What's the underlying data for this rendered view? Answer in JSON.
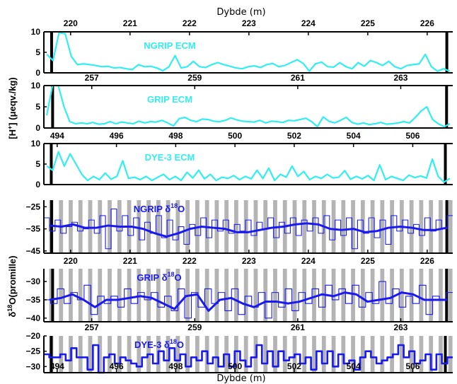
{
  "chart_data": {
    "type": "line",
    "top_xlabel": "Dybde (m)",
    "bottom_xlabel": "Dybde (m)",
    "ecm_ylabel": {
      "main": "[H",
      "sup": "+",
      "rest": "] (μeqv./kg)"
    },
    "iso_ylabel": {
      "main": "δ",
      "sup": "18",
      "rest": "O(promille)"
    },
    "colors": {
      "ecm": "#33eeee",
      "iso": "#1a1aee",
      "band": "#b4b4b4",
      "marker": "#000000"
    },
    "depth_axes": {
      "NGRIP": {
        "xlim": [
          219.55,
          226.43
        ],
        "ticks": [
          "220",
          "221",
          "222",
          "223",
          "224",
          "225",
          "226"
        ],
        "markers": [
          219.68,
          226.33
        ],
        "annual_layers": 42
      },
      "GRIP": {
        "xlim": [
          256.07,
          264.01
        ],
        "ticks": [
          "257",
          "259",
          "261",
          "263"
        ],
        "markers": [
          256.24,
          263.89
        ],
        "annual_layers": 42
      },
      "DYE3": {
        "xlim": [
          493.55,
          507.35
        ],
        "ticks": [
          "494",
          "496",
          "498",
          "500",
          "502",
          "504",
          "506"
        ],
        "markers": [
          493.8,
          507.1
        ],
        "annual_layers": 42
      }
    },
    "panels": [
      {
        "title": "NGRIP ECM",
        "axis": "NGRIP",
        "ylim": [
          0,
          10
        ],
        "yticks": [
          "0",
          "5",
          "10"
        ],
        "kind": "ecm",
        "series": [
          {
            "name": "NGRIP ECM",
            "values": [
              4.5,
              3,
              9.8,
              9.5,
              4,
              2,
              2.2,
              2,
              1.8,
              1.5,
              1.6,
              1.2,
              1.3,
              1,
              0.8,
              2,
              1.5,
              1.6,
              1.2,
              0.5,
              1.5,
              4.2,
              1.2,
              1.5,
              2.8,
              1.5,
              1.3,
              2,
              2.5,
              2,
              1.6,
              1.2,
              1,
              1.5,
              1.7,
              1.3,
              2,
              2.3,
              1.5,
              1.8,
              2.5,
              3.2,
              2.3,
              0.4,
              2.2,
              2.6,
              1.5,
              1.4,
              2.5,
              1.5,
              1,
              2.5,
              1.6,
              3,
              2.5,
              1.8,
              2.8,
              1.5,
              1,
              1.8,
              2,
              2.2,
              4.5,
              1.5,
              0.4,
              1,
              0.4
            ]
          }
        ]
      },
      {
        "title": "GRIP ECM",
        "axis": "GRIP",
        "ylim": [
          0,
          10
        ],
        "yticks": [
          "0",
          "5",
          "10"
        ],
        "kind": "ecm",
        "series": [
          {
            "name": "GRIP ECM",
            "values": [
              3,
              10,
              10,
              5,
              1.5,
              1,
              1.2,
              1,
              1.3,
              0.9,
              1,
              1.5,
              1,
              1.4,
              1.2,
              1,
              1.6,
              1.2,
              1.5,
              1.4,
              1.8,
              1.2,
              0.5,
              2.2,
              2.5,
              1.8,
              1.5,
              2.1,
              2,
              1.6,
              1.5,
              1.8,
              2.4,
              1.9,
              1.6,
              1.5,
              1.4,
              1.8,
              1.2,
              1.6,
              1.5,
              1.3,
              1.8,
              1.7,
              2,
              2.3,
              1.5,
              0.3,
              2.6,
              1.6,
              1.2,
              1.8,
              2.5,
              1.3,
              0.9,
              1.2,
              0.8,
              1,
              1.3,
              0.9,
              1,
              1.2,
              1.5,
              1.2,
              2.5,
              4,
              5,
              2,
              1,
              0.3,
              1
            ]
          }
        ]
      },
      {
        "title": "DYE-3 ECM",
        "axis": "DYE3",
        "ylim": [
          0,
          10
        ],
        "yticks": [
          "0",
          "5",
          "10"
        ],
        "kind": "ecm",
        "series": [
          {
            "name": "DYE-3 ECM",
            "values": [
              4.5,
              3.5,
              8,
              4.5,
              7.5,
              5,
              2.5,
              1,
              2,
              1.2,
              2.8,
              1.3,
              2,
              5.8,
              1.5,
              1.8,
              1.2,
              2,
              1,
              1.8,
              2.5,
              1.2,
              2,
              1,
              3,
              1.6,
              3.5,
              1.4,
              2.5,
              1,
              1.8,
              1.5,
              2.2,
              1.2,
              2,
              1.4,
              3.5,
              1.5,
              4,
              1,
              2.5,
              1.8,
              4.5,
              2,
              3.2,
              1.2,
              2,
              1.5,
              2.5,
              1.6,
              1.8,
              3.4,
              1.3,
              2,
              1.4,
              2.2,
              1,
              4.8,
              1.2,
              2,
              1.5,
              1,
              2.3,
              1.7,
              2.1,
              1.6,
              6.2,
              2,
              0.6,
              1.5
            ]
          }
        ]
      },
      {
        "title": "NGRIP δ",
        "title_sup": "18",
        "title_end": "O",
        "axis": "NGRIP",
        "ylim": [
          -46,
          -22
        ],
        "yticks": [
          "-25",
          "-35",
          "-45"
        ],
        "ytick_values": [
          -25,
          -35,
          -45
        ],
        "kind": "iso",
        "series": [
          {
            "name": "NGRIP δ18O raw",
            "values": [
              -30,
              -36,
              -31,
              -37,
              -34,
              -32,
              -36,
              -35,
              -31,
              -37,
              -29,
              -44,
              -26,
              -36,
              -29,
              -38,
              -30,
              -40,
              -32,
              -37,
              -29,
              -39,
              -31,
              -40,
              -34,
              -42,
              -33,
              -38,
              -30,
              -39,
              -31,
              -36,
              -31,
              -37,
              -33,
              -36,
              -31,
              -38,
              -32,
              -35,
              -30,
              -39,
              -32,
              -37,
              -30,
              -38,
              -31,
              -36,
              -30,
              -37,
              -29,
              -40,
              -31,
              -38,
              -30,
              -44,
              -31,
              -37,
              -30,
              -39,
              -31,
              -42,
              -29,
              -36,
              -31,
              -37,
              -33,
              -38,
              -30,
              -36,
              -31,
              -35,
              -29
            ]
          },
          {
            "name": "NGRIP δ18O smoothed",
            "values": [
              -33.5,
              -34,
              -33,
              -34.5,
              -34.5,
              -33.5,
              -34,
              -34,
              -35,
              -37,
              -38.5,
              -37,
              -35,
              -34,
              -34.5,
              -35,
              -36.5,
              -36.5,
              -35.5,
              -34.5,
              -34,
              -33,
              -32.5,
              -33,
              -35,
              -35.5,
              -35,
              -36.5,
              -36,
              -34.5,
              -34,
              -34.5,
              -35.5,
              -35.5,
              -34.5
            ]
          }
        ]
      },
      {
        "title": "GRIP δ",
        "title_sup": "18",
        "title_end": "O",
        "axis": "GRIP",
        "ylim": [
          -41,
          -26.5
        ],
        "yticks": [
          "-30",
          "-35",
          "-40"
        ],
        "ytick_values": [
          -30,
          -35,
          -40
        ],
        "kind": "iso",
        "series": [
          {
            "name": "GRIP δ18O raw",
            "values": [
              -35,
              -36,
              -32,
              -36,
              -33,
              -35,
              -31,
              -39,
              -34,
              -36,
              -34,
              -37,
              -32,
              -36,
              -33,
              -35,
              -33,
              -37,
              -34,
              -38,
              -32,
              -40,
              -33,
              -37,
              -32,
              -36,
              -33,
              -38,
              -32,
              -39,
              -34,
              -37,
              -33,
              -40,
              -33,
              -37,
              -32,
              -38,
              -33,
              -36,
              -32,
              -37,
              -31,
              -35,
              -32,
              -36,
              -31,
              -37,
              -33,
              -36,
              -30,
              -36,
              -32,
              -37,
              -34,
              -36,
              -31,
              -39,
              -34,
              -35,
              -33
            ]
          },
          {
            "name": "GRIP δ18O smoothed",
            "values": [
              -35,
              -34.5,
              -33.5,
              -35,
              -37,
              -35,
              -35,
              -34.5,
              -34,
              -34.5,
              -36,
              -37.5,
              -34,
              -33.5,
              -38,
              -35,
              -34.5,
              -36,
              -37,
              -35.5,
              -35.5,
              -36,
              -35.5,
              -34.5,
              -33.5,
              -34,
              -33,
              -33.5,
              -35.5,
              -35,
              -34.5,
              -33,
              -33.5,
              -35,
              -35,
              -35
            ]
          }
        ]
      },
      {
        "title": "DYE-3 δ",
        "title_sup": "18",
        "title_end": "O",
        "axis": "DYE3",
        "ylim": [
          -32,
          -20
        ],
        "yticks": [
          "-20",
          "-25",
          "-30"
        ],
        "ytick_values": [
          -20,
          -25,
          -30
        ],
        "kind": "iso",
        "series": [
          {
            "name": "DYE-3 δ18O",
            "values": [
              -26,
              -27,
              -27,
              -26,
              -28,
              -24,
              -27,
              -27,
              -31,
              -23,
              -32,
              -27,
              -26,
              -29,
              -27,
              -28,
              -29,
              -30,
              -27,
              -26,
              -29,
              -25,
              -28,
              -24,
              -28,
              -26,
              -30,
              -27,
              -28,
              -25,
              -29,
              -27,
              -30,
              -26,
              -30,
              -25,
              -28,
              -30,
              -27,
              -23,
              -29,
              -25,
              -30,
              -25,
              -28,
              -27,
              -26,
              -29,
              -27,
              -31,
              -25,
              -29,
              -25,
              -30,
              -26,
              -29,
              -28,
              -31,
              -27,
              -25,
              -27,
              -29,
              -28,
              -27,
              -26,
              -23,
              -27,
              -25,
              -29,
              -28,
              -26,
              -31,
              -26,
              -29,
              -27
            ]
          }
        ]
      }
    ]
  }
}
